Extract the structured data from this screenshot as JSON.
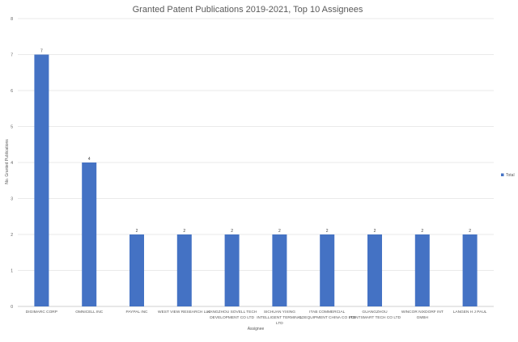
{
  "chart_data": {
    "type": "bar",
    "title": "Granted Patent Publications 2019-2021, Top 10 Assignees",
    "xlabel": "Assignee",
    "ylabel": "No. Granted Publications",
    "ylim": [
      0,
      8
    ],
    "yticks": [
      0,
      1,
      2,
      3,
      4,
      5,
      6,
      7,
      8
    ],
    "grid": true,
    "legend_position": "right",
    "categories": [
      [
        "DIGIMARC CORP"
      ],
      [
        "OMNICELL INC"
      ],
      [
        "PAYPAL INC"
      ],
      [
        "WEST VIEW RESEARCH LLC"
      ],
      [
        "HANGZHOU SOVELL TECH",
        "DEVELOPMENT CO LTD"
      ],
      [
        "SICHUAN YIXING",
        "INTELLIGENT TERMINAL",
        "LTD"
      ],
      [
        "ITAB COMMERCIAL",
        "COEQUIPMENT CHINA CO LTD"
      ],
      [
        "GUANGZHOU",
        "POINTSMART TECH CO LTD"
      ],
      [
        "WINCOR NIXDORF INT",
        "GMBH"
      ],
      [
        "LANGEN H J PAUL"
      ]
    ],
    "series": [
      {
        "name": "Total",
        "color": "#4472c4",
        "values": [
          7,
          4,
          2,
          2,
          2,
          2,
          2,
          2,
          2,
          2
        ]
      }
    ],
    "data_labels": [
      "7",
      "4",
      "2",
      "2",
      "2",
      "2",
      "2",
      "2",
      "2",
      "2"
    ]
  }
}
